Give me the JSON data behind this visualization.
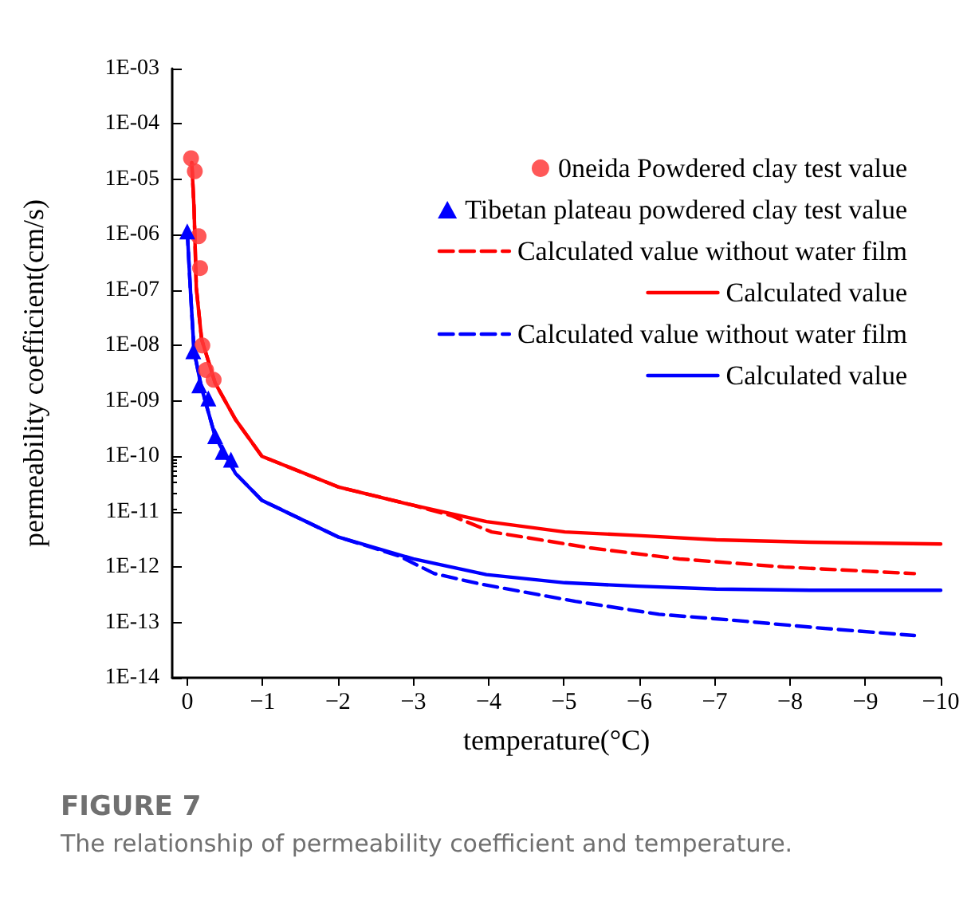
{
  "chart_data": {
    "type": "line",
    "xlabel": "temperature(°C)",
    "ylabel": "permeability coefficient(cm/s)",
    "log": "y",
    "xlim": [
      0.2,
      -10
    ],
    "xticks": [
      0,
      -1,
      -2,
      -3,
      -4,
      -5,
      -6,
      -7,
      -8,
      -9,
      -10
    ],
    "ylim": [
      1e-14,
      0.001
    ],
    "yticks": [
      {
        "value": 1e-14,
        "label": "1E-14"
      },
      {
        "value": 1e-13,
        "label": "1E-13"
      },
      {
        "value": 1e-12,
        "label": "1E-12"
      },
      {
        "value": 1e-11,
        "label": "1E-11"
      },
      {
        "value": 1e-10,
        "label": "1E-10"
      },
      {
        "value": 1e-09,
        "label": "1E-09"
      },
      {
        "value": 1e-08,
        "label": "1E-08"
      },
      {
        "value": 1e-07,
        "label": "1E-07"
      },
      {
        "value": 1e-06,
        "label": "1E-06"
      },
      {
        "value": 1e-05,
        "label": "1E-05"
      },
      {
        "value": 0.0001,
        "label": "1E-04"
      },
      {
        "value": 0.001,
        "label": "1E-03"
      }
    ],
    "grid": false,
    "legend": "top right",
    "series": [
      {
        "name": "0neida Powdered clay test value",
        "type": "scatter",
        "marker": "circle",
        "color": "#ff3b3b",
        "x": [
          -0.05,
          -0.1,
          -0.15,
          -0.17,
          -0.2,
          -0.25,
          -0.35
        ],
        "values": [
          2.4e-05,
          1.4e-05,
          9.4e-07,
          2.5e-07,
          1e-08,
          3.6e-09,
          2.4e-09
        ]
      },
      {
        "name": "Tibetan plateau powdered clay test value",
        "type": "scatter",
        "marker": "triangle",
        "color": "#0000ff",
        "x": [
          0,
          -0.08,
          -0.16,
          -0.28,
          -0.37,
          -0.47,
          -0.58
        ],
        "values": [
          1.15e-06,
          7.9e-09,
          1.9e-09,
          1.1e-09,
          2.3e-10,
          1.2e-10,
          8.7e-11
        ]
      },
      {
        "name": "Calculated value without water film",
        "line_style": "dashed",
        "color": "#ff0000",
        "x": [
          -0.06,
          -0.09,
          -0.12,
          -0.19,
          -0.37,
          -0.64,
          -0.99,
          -2.0,
          -3.0,
          -3.5,
          -4.04,
          -5.36,
          -6.53,
          -7.92,
          -9.65
        ],
        "values": [
          2e-05,
          3e-06,
          1.1e-07,
          1.3e-08,
          2.1e-09,
          4.6e-10,
          1e-10,
          2.8e-11,
          1.3e-11,
          8.5e-12,
          4.3e-12,
          2.2e-12,
          1.4e-12,
          1e-12,
          7.6e-13
        ]
      },
      {
        "name": "Calculated value",
        "line_style": "solid",
        "color": "#ff0000",
        "x": [
          -0.06,
          -0.09,
          -0.12,
          -0.19,
          -0.37,
          -0.64,
          -0.99,
          -2.0,
          -3.0,
          -3.97,
          -5.01,
          -5.98,
          -7.02,
          -8.27,
          -10
        ],
        "values": [
          2e-05,
          3e-06,
          1.1e-07,
          1.3e-08,
          2.1e-09,
          4.6e-10,
          1e-10,
          2.8e-11,
          1.3e-11,
          6.6e-12,
          4.3e-12,
          3.7e-12,
          3.1e-12,
          2.8e-12,
          2.6e-12
        ]
      },
      {
        "name": "Calculated value without water film",
        "line_style": "dashed",
        "color": "#0000ff",
        "x": [
          0,
          -0.04,
          -0.09,
          -0.19,
          -0.37,
          -0.64,
          -0.99,
          -2.0,
          -2.8,
          -3.28,
          -3.9,
          -5.15,
          -6.26,
          -7.23,
          -8.4,
          -9.65
        ],
        "values": [
          1.15e-06,
          1.1e-07,
          7.9e-09,
          1.7e-09,
          2.3e-10,
          4.9e-11,
          1.6e-11,
          3.5e-12,
          1.6e-12,
          7.6e-13,
          4.9e-13,
          2.4e-13,
          1.4e-13,
          1.1e-13,
          7.9e-14,
          5.8e-14
        ]
      },
      {
        "name": "Calculated value",
        "line_style": "solid",
        "color": "#0000ff",
        "x": [
          0,
          -0.04,
          -0.09,
          -0.19,
          -0.37,
          -0.64,
          -0.99,
          -2.0,
          -3.0,
          -3.97,
          -5.01,
          -5.98,
          -7.02,
          -8.27,
          -10
        ],
        "values": [
          1.15e-06,
          1.1e-07,
          7.9e-09,
          1.7e-09,
          2.3e-10,
          4.9e-11,
          1.6e-11,
          3.5e-12,
          1.4e-12,
          7.3e-13,
          5.2e-13,
          4.5e-13,
          4e-13,
          3.8e-13,
          3.8e-13
        ]
      }
    ],
    "annotations": [
      "FIGURE 7",
      "The relationship of permeability coefficient and temperature."
    ]
  }
}
